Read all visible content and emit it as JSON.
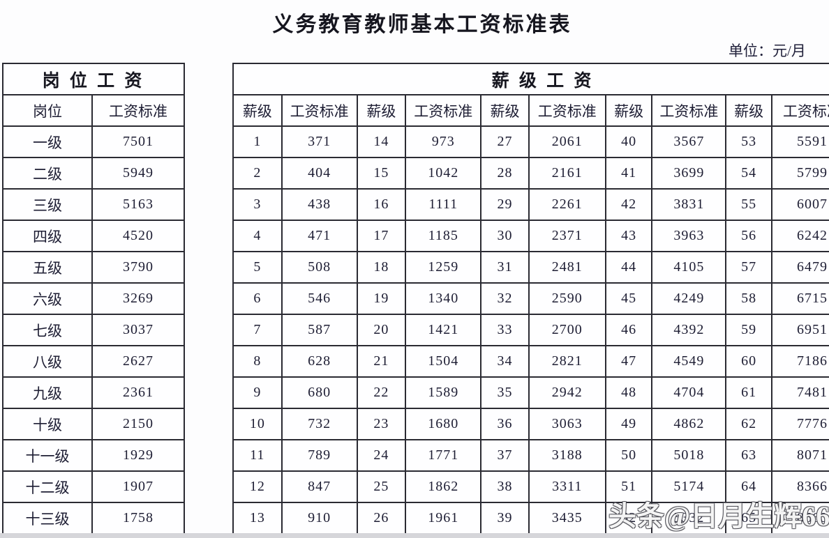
{
  "page": {
    "title": "义务教育教师基本工资标准表",
    "unit_note": "单位：元/月",
    "watermark": "头条@日月生辉666"
  },
  "position_table": {
    "header": "岗 位 工 资",
    "columns": [
      "岗位",
      "工资标准"
    ],
    "rows": [
      [
        "一级",
        "7501"
      ],
      [
        "二级",
        "5949"
      ],
      [
        "三级",
        "5163"
      ],
      [
        "四级",
        "4520"
      ],
      [
        "五级",
        "3790"
      ],
      [
        "六级",
        "3269"
      ],
      [
        "七级",
        "3037"
      ],
      [
        "八级",
        "2627"
      ],
      [
        "九级",
        "2361"
      ],
      [
        "十级",
        "2150"
      ],
      [
        "十一级",
        "1929"
      ],
      [
        "十二级",
        "1907"
      ],
      [
        "十三级",
        "1758"
      ]
    ]
  },
  "grade_table": {
    "header": "薪 级 工 资",
    "col_pair": [
      "薪级",
      "工资标准"
    ],
    "pair_count": 5,
    "rows": [
      [
        "1",
        "371",
        "14",
        "973",
        "27",
        "2061",
        "40",
        "3567",
        "53",
        "5591"
      ],
      [
        "2",
        "404",
        "15",
        "1042",
        "28",
        "2161",
        "41",
        "3699",
        "54",
        "5799"
      ],
      [
        "3",
        "438",
        "16",
        "1111",
        "29",
        "2261",
        "42",
        "3831",
        "55",
        "6007"
      ],
      [
        "4",
        "471",
        "17",
        "1185",
        "30",
        "2371",
        "43",
        "3963",
        "56",
        "6242"
      ],
      [
        "5",
        "508",
        "18",
        "1259",
        "31",
        "2481",
        "44",
        "4105",
        "57",
        "6479"
      ],
      [
        "6",
        "546",
        "19",
        "1340",
        "32",
        "2590",
        "45",
        "4249",
        "58",
        "6715"
      ],
      [
        "7",
        "587",
        "20",
        "1421",
        "33",
        "2700",
        "46",
        "4392",
        "59",
        "6951"
      ],
      [
        "8",
        "628",
        "21",
        "1504",
        "34",
        "2821",
        "47",
        "4549",
        "60",
        "7186"
      ],
      [
        "9",
        "680",
        "22",
        "1589",
        "35",
        "2942",
        "48",
        "4704",
        "61",
        "7481"
      ],
      [
        "10",
        "732",
        "23",
        "1680",
        "36",
        "3063",
        "49",
        "4862",
        "62",
        "7776"
      ],
      [
        "11",
        "789",
        "24",
        "1771",
        "37",
        "3188",
        "50",
        "5018",
        "63",
        "8071"
      ],
      [
        "12",
        "847",
        "25",
        "1862",
        "38",
        "3311",
        "51",
        "5174",
        "64",
        "8366"
      ],
      [
        "13",
        "910",
        "26",
        "1961",
        "39",
        "3435",
        "52",
        "5332",
        "65",
        "8660"
      ]
    ]
  }
}
